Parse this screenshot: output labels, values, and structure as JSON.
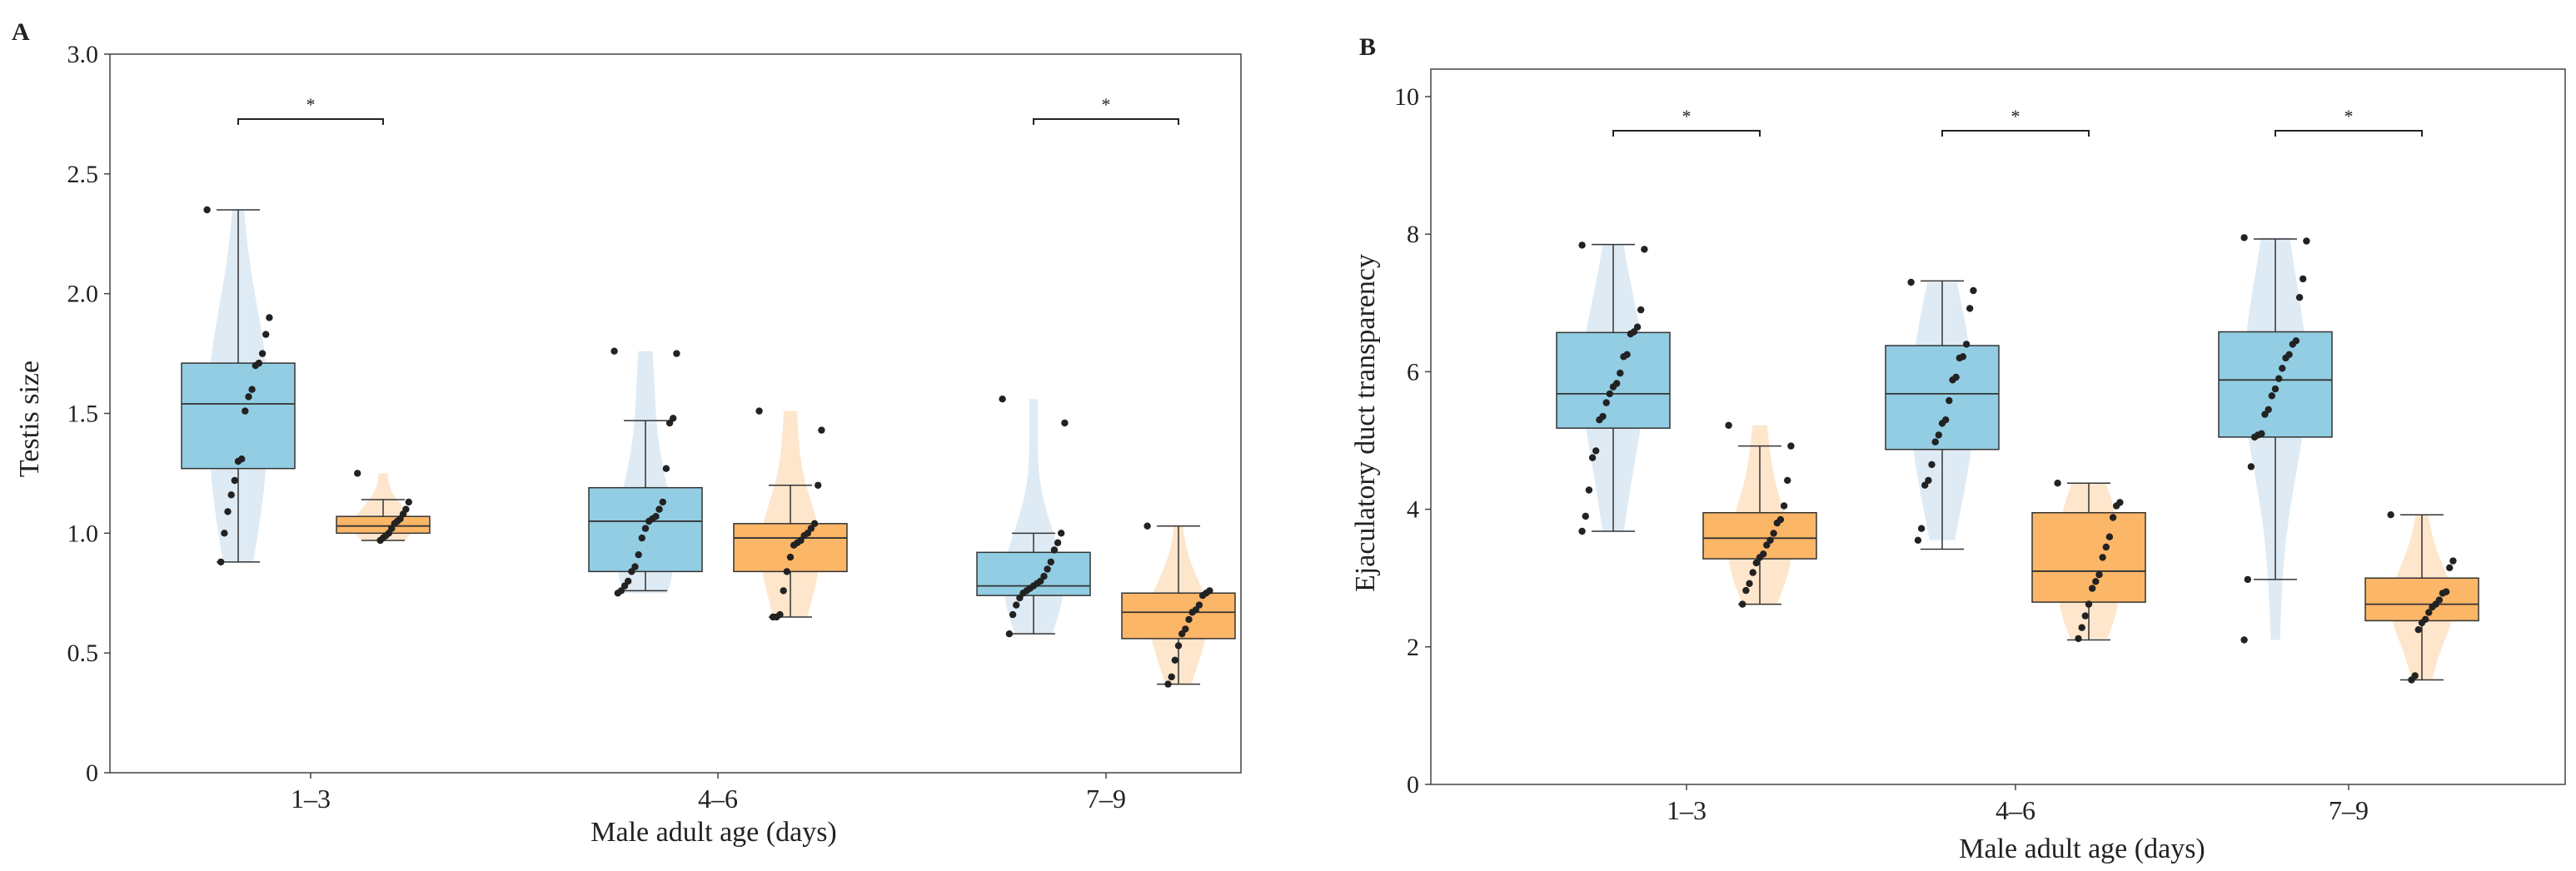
{
  "colors": {
    "blue_fill": "#92cde3",
    "blue_violin": "#dbe9f3",
    "orange_fill": "#fbb667",
    "orange_violin": "#fde3c6",
    "edge": "#333333",
    "dot": "#222222"
  },
  "chart_data": [
    {
      "type": "box",
      "panel_label": "A",
      "xlabel": "Male adult age (days)",
      "ylabel": "Testis size",
      "ylim": [
        0,
        3.0
      ],
      "yticks": [
        "0",
        "0.5",
        "1.0",
        "1.5",
        "2.0",
        "2.5",
        "3.0"
      ],
      "categories": [
        "1–3",
        "4–6",
        "7–9"
      ],
      "significance_label": "*",
      "significance": [
        0,
        2
      ],
      "groups": [
        {
          "category": 0,
          "color": "blue",
          "min": 0.88,
          "q1": 1.27,
          "median": 1.54,
          "q3": 1.71,
          "max": 2.35,
          "points": [
            2.35,
            1.9,
            1.83,
            1.75,
            1.71,
            1.7,
            1.6,
            1.57,
            1.51,
            1.31,
            1.3,
            1.22,
            1.16,
            1.09,
            1.0,
            0.88
          ]
        },
        {
          "category": 0,
          "color": "orange",
          "min": 0.97,
          "q1": 1.0,
          "median": 1.03,
          "q3": 1.07,
          "max": 1.14,
          "points": [
            1.25,
            1.13,
            1.1,
            1.08,
            1.06,
            1.05,
            1.04,
            1.02,
            1.0,
            0.99,
            0.98,
            0.97
          ]
        },
        {
          "category": 1,
          "color": "blue",
          "min": 0.76,
          "q1": 0.84,
          "median": 1.05,
          "q3": 1.19,
          "max": 1.47,
          "points": [
            1.76,
            1.75,
            1.48,
            1.46,
            1.27,
            1.13,
            1.1,
            1.07,
            1.06,
            1.05,
            1.02,
            0.98,
            0.91,
            0.86,
            0.84,
            0.8,
            0.78,
            0.76,
            0.75
          ]
        },
        {
          "category": 1,
          "color": "orange",
          "min": 0.65,
          "q1": 0.84,
          "median": 0.98,
          "q3": 1.04,
          "max": 1.2,
          "points": [
            1.51,
            1.43,
            1.2,
            1.04,
            1.02,
            1.0,
            0.99,
            0.97,
            0.96,
            0.95,
            0.9,
            0.84,
            0.76,
            0.66,
            0.65,
            0.65
          ]
        },
        {
          "category": 2,
          "color": "blue",
          "min": 0.58,
          "q1": 0.74,
          "median": 0.78,
          "q3": 0.92,
          "max": 1.0,
          "points": [
            1.56,
            1.46,
            1.0,
            0.96,
            0.93,
            0.88,
            0.85,
            0.82,
            0.8,
            0.79,
            0.78,
            0.77,
            0.76,
            0.75,
            0.73,
            0.7,
            0.66,
            0.58
          ]
        },
        {
          "category": 2,
          "color": "orange",
          "min": 0.37,
          "q1": 0.56,
          "median": 0.67,
          "q3": 0.75,
          "max": 1.03,
          "points": [
            1.03,
            0.76,
            0.75,
            0.74,
            0.7,
            0.68,
            0.67,
            0.64,
            0.6,
            0.58,
            0.53,
            0.47,
            0.4,
            0.37
          ]
        }
      ]
    },
    {
      "type": "box",
      "panel_label": "B",
      "xlabel": "Male adult age (days)",
      "ylabel": "Ejaculatory duct transparency",
      "ylim": [
        0,
        10.4
      ],
      "yticks": [
        "0",
        "2",
        "4",
        "6",
        "8",
        "10"
      ],
      "categories": [
        "1–3",
        "4–6",
        "7–9"
      ],
      "significance_label": "*",
      "significance": [
        0,
        1,
        2
      ],
      "groups": [
        {
          "category": 0,
          "color": "blue",
          "min": 3.68,
          "q1": 5.18,
          "median": 5.68,
          "q3": 6.57,
          "max": 7.85,
          "points": [
            7.84,
            7.78,
            6.9,
            6.65,
            6.58,
            6.55,
            6.25,
            6.22,
            5.98,
            5.83,
            5.78,
            5.68,
            5.55,
            5.35,
            5.3,
            4.85,
            4.75,
            4.28,
            3.9,
            3.68
          ]
        },
        {
          "category": 0,
          "color": "orange",
          "min": 2.62,
          "q1": 3.28,
          "median": 3.58,
          "q3": 3.95,
          "max": 4.92,
          "points": [
            5.22,
            4.92,
            4.42,
            4.05,
            3.85,
            3.8,
            3.65,
            3.55,
            3.48,
            3.35,
            3.3,
            3.22,
            3.08,
            2.92,
            2.82,
            2.62
          ]
        },
        {
          "category": 1,
          "color": "blue",
          "min": 3.42,
          "q1": 4.87,
          "median": 5.68,
          "q3": 6.38,
          "max": 7.32,
          "points": [
            7.3,
            7.18,
            6.92,
            6.4,
            6.22,
            6.2,
            5.92,
            5.88,
            5.58,
            5.3,
            5.25,
            5.08,
            4.98,
            4.65,
            4.42,
            4.35,
            3.72,
            3.55
          ]
        },
        {
          "category": 1,
          "color": "orange",
          "min": 2.1,
          "q1": 2.65,
          "median": 3.1,
          "q3": 3.95,
          "max": 4.38,
          "points": [
            4.38,
            4.1,
            4.05,
            3.88,
            3.6,
            3.45,
            3.3,
            3.05,
            2.95,
            2.85,
            2.62,
            2.45,
            2.28,
            2.12
          ]
        },
        {
          "category": 2,
          "color": "blue",
          "min": 2.98,
          "q1": 5.05,
          "median": 5.88,
          "q3": 6.58,
          "max": 7.93,
          "points": [
            7.95,
            7.9,
            7.35,
            7.08,
            6.45,
            6.4,
            6.25,
            6.2,
            6.05,
            5.9,
            5.75,
            5.65,
            5.45,
            5.38,
            5.1,
            5.08,
            5.05,
            4.62,
            2.98,
            2.1
          ]
        },
        {
          "category": 2,
          "color": "orange",
          "min": 1.52,
          "q1": 2.38,
          "median": 2.62,
          "q3": 3.0,
          "max": 3.92,
          "points": [
            3.92,
            3.25,
            3.15,
            2.8,
            2.78,
            2.68,
            2.62,
            2.58,
            2.5,
            2.4,
            2.35,
            2.25,
            1.58,
            1.52
          ]
        }
      ]
    }
  ]
}
